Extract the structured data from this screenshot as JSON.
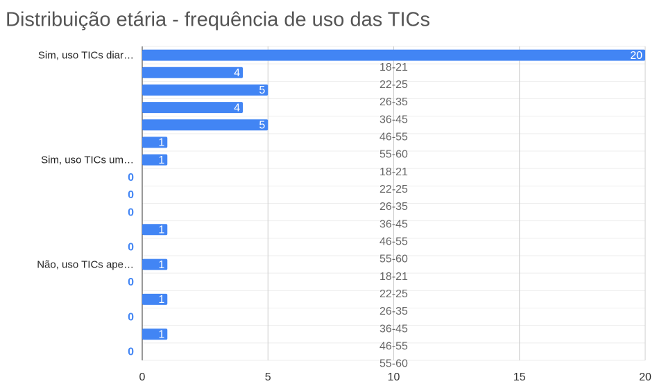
{
  "chart_data": {
    "type": "bar",
    "orientation": "horizontal",
    "title": "Distribuição etária - frequência de uso das TICs",
    "categories": [
      "Sim, uso TICs diar…",
      null,
      null,
      null,
      null,
      null,
      "Sim, uso TICs um…",
      null,
      null,
      null,
      null,
      null,
      "Não, uso TICs ape…",
      null,
      null,
      null,
      null,
      null
    ],
    "row_labels": [
      "18-21",
      "22-25",
      "26-35",
      "36-45",
      "46-55",
      "55-60",
      "18-21",
      "22-25",
      "26-35",
      "36-45",
      "46-55",
      "55-60",
      "18-21",
      "22-25",
      "26-35",
      "36-45",
      "46-55",
      "55-60"
    ],
    "values": [
      20,
      4,
      5,
      4,
      5,
      1,
      1,
      0,
      0,
      0,
      1,
      0,
      1,
      0,
      1,
      0,
      1,
      0
    ],
    "color": "#4285f4",
    "xlim": [
      0,
      20
    ],
    "xticks": [
      0,
      5,
      10,
      15,
      20
    ],
    "grid": true
  }
}
